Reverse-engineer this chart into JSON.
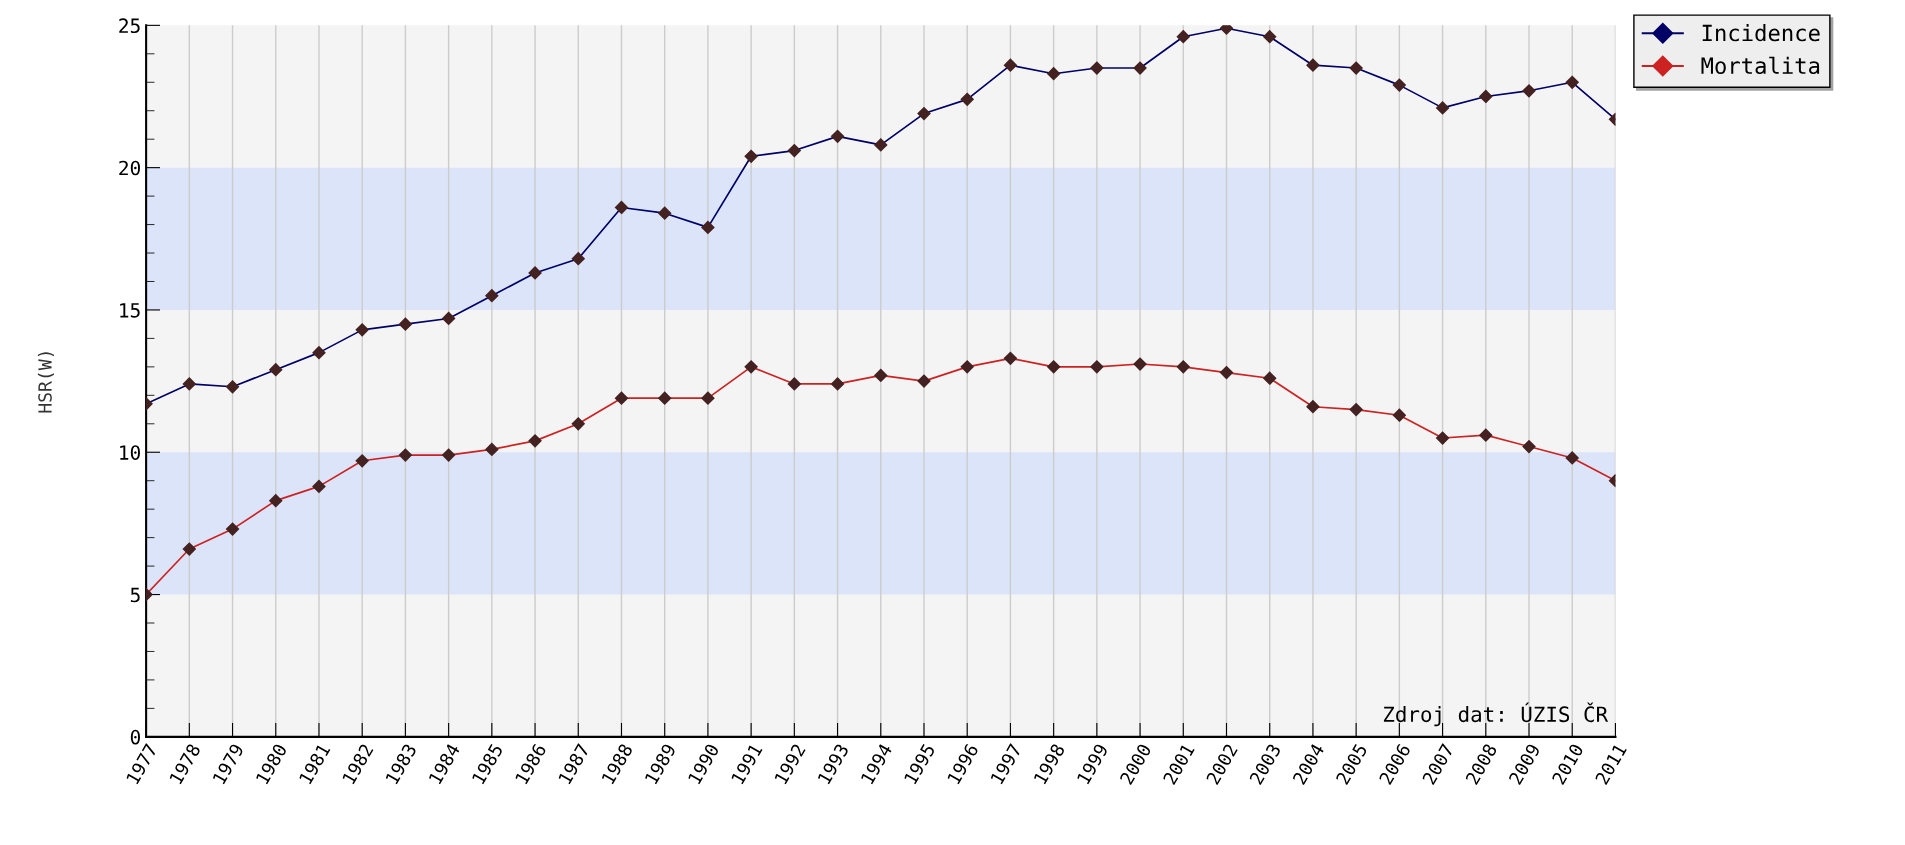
{
  "chart_data": {
    "type": "line",
    "ylabel": "HSR(W)",
    "categories": [
      "1977",
      "1978",
      "1979",
      "1980",
      "1981",
      "1982",
      "1983",
      "1984",
      "1985",
      "1986",
      "1987",
      "1988",
      "1989",
      "1990",
      "1991",
      "1992",
      "1993",
      "1994",
      "1995",
      "1996",
      "1997",
      "1998",
      "1999",
      "2000",
      "2001",
      "2002",
      "2003",
      "2004",
      "2005",
      "2006",
      "2007",
      "2008",
      "2009",
      "2010",
      "2011"
    ],
    "series": [
      {
        "name": "Incidence",
        "color": "#000066",
        "values": [
          11.7,
          12.4,
          12.3,
          12.9,
          13.5,
          14.3,
          14.5,
          14.7,
          15.5,
          16.3,
          16.8,
          18.6,
          18.4,
          17.9,
          20.4,
          20.6,
          21.1,
          20.8,
          21.9,
          22.4,
          23.6,
          23.3,
          23.5,
          23.5,
          24.6,
          24.9,
          24.6,
          23.6,
          23.5,
          22.9,
          22.1,
          22.5,
          22.7,
          23.0,
          21.7
        ]
      },
      {
        "name": "Mortalita",
        "color": "#cc2222",
        "values": [
          5.0,
          6.6,
          7.3,
          8.3,
          8.8,
          9.7,
          9.9,
          9.9,
          10.1,
          10.4,
          11.0,
          11.9,
          11.9,
          11.9,
          13.0,
          12.4,
          12.4,
          12.7,
          12.5,
          13.0,
          13.3,
          13.0,
          13.0,
          13.1,
          13.0,
          12.8,
          12.6,
          11.6,
          11.5,
          11.3,
          10.5,
          10.6,
          10.2,
          9.8,
          9.0
        ]
      }
    ],
    "ylim": [
      0,
      25
    ],
    "yticks": [
      0,
      5,
      10,
      15,
      20,
      25
    ],
    "bands": [
      {
        "axis": "y",
        "from": 5,
        "to": 10,
        "color": "#dce4fa"
      },
      {
        "axis": "y",
        "from": 15,
        "to": 20,
        "color": "#dce4fa"
      }
    ],
    "grid": "x",
    "legend": "top right",
    "marker": "diamond",
    "line_style": "solid",
    "annotations": [
      "Zdroj dat: ÚZIS ČR"
    ]
  }
}
